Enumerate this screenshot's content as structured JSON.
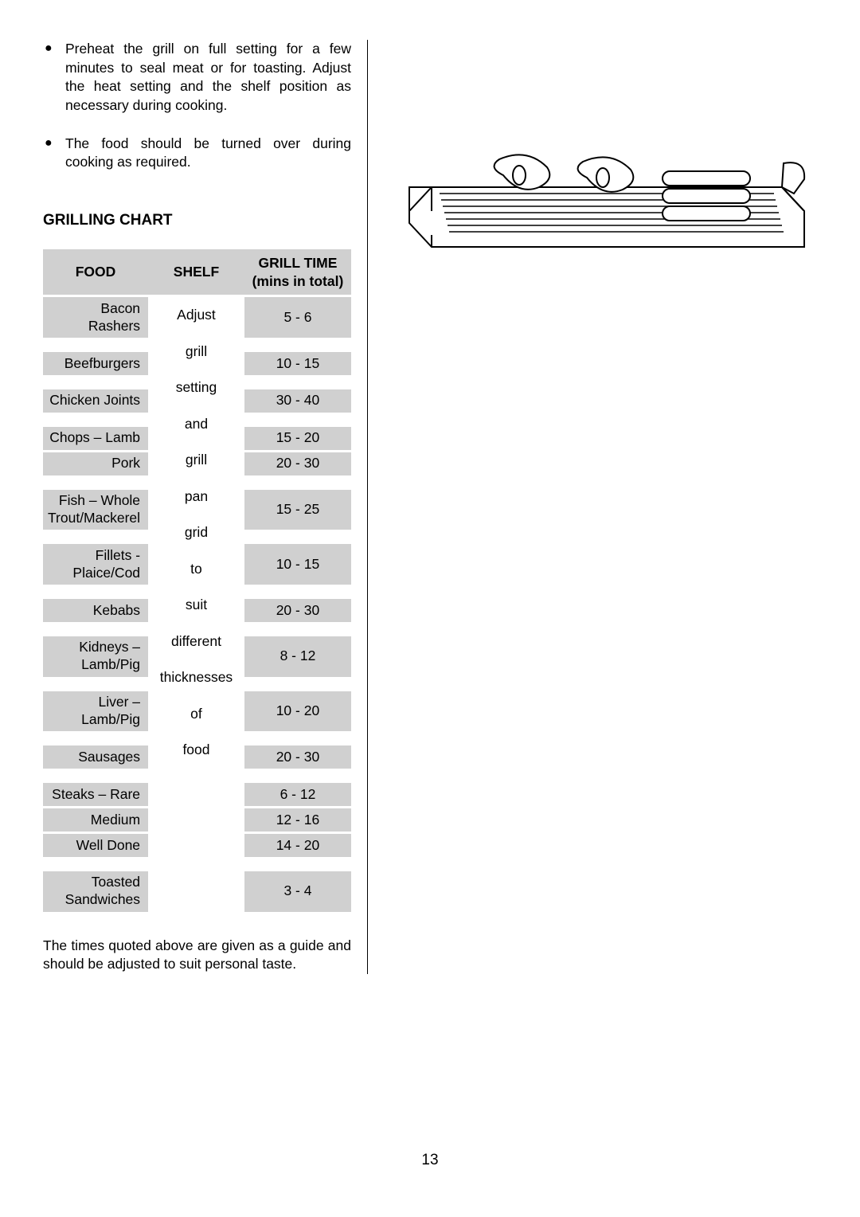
{
  "bullets": [
    "Preheat the grill on full setting for a few minutes to seal meat or for toasting.  Adjust the heat setting and the shelf position as necessary during cooking.",
    "The food should be turned over during cooking as required."
  ],
  "section_heading": "GRILLING CHART",
  "table": {
    "headers": {
      "food": "FOOD",
      "shelf": "SHELF",
      "time": "GRILL TIME (mins in total)"
    },
    "shelf_words": [
      "Adjust",
      "grill",
      "setting",
      "and",
      "grill",
      "pan",
      "grid",
      "to",
      "suit",
      "different",
      "thicknesses",
      "of",
      "food"
    ],
    "rows": [
      {
        "food": "Bacon Rashers",
        "time": "5 - 6"
      },
      {
        "food": "Beefburgers",
        "time": "10 - 15"
      },
      {
        "food": "Chicken Joints",
        "time": "30 - 40"
      },
      {
        "food": "Chops – Lamb",
        "time": "15 - 20"
      },
      {
        "food": "Pork",
        "time": "20 - 30",
        "nogap": true
      },
      {
        "food": "Fish – Whole Trout/Mackerel",
        "time": "15 - 25"
      },
      {
        "food": "Fillets - Plaice/Cod",
        "time": "10 - 15"
      },
      {
        "food": "Kebabs",
        "time": "20 - 30"
      },
      {
        "food": "Kidneys – Lamb/Pig",
        "time": "8 - 12"
      },
      {
        "food": "Liver – Lamb/Pig",
        "time": "10 - 20"
      },
      {
        "food": "Sausages",
        "time": "20 - 30"
      },
      {
        "food": "Steaks – Rare",
        "time": "6 - 12"
      },
      {
        "food": "Medium",
        "time": "12 - 16",
        "nogap": true
      },
      {
        "food": "Well Done",
        "time": "14 - 20",
        "nogap": true
      },
      {
        "food": "Toasted Sandwiches",
        "time": "3 - 4"
      }
    ]
  },
  "footnote": "The times quoted above are given as a guide and should be adjusted to suit personal taste.",
  "page_number": "13",
  "colors": {
    "cell_bg": "#d0d0d0",
    "text": "#000000",
    "bg": "#ffffff"
  }
}
